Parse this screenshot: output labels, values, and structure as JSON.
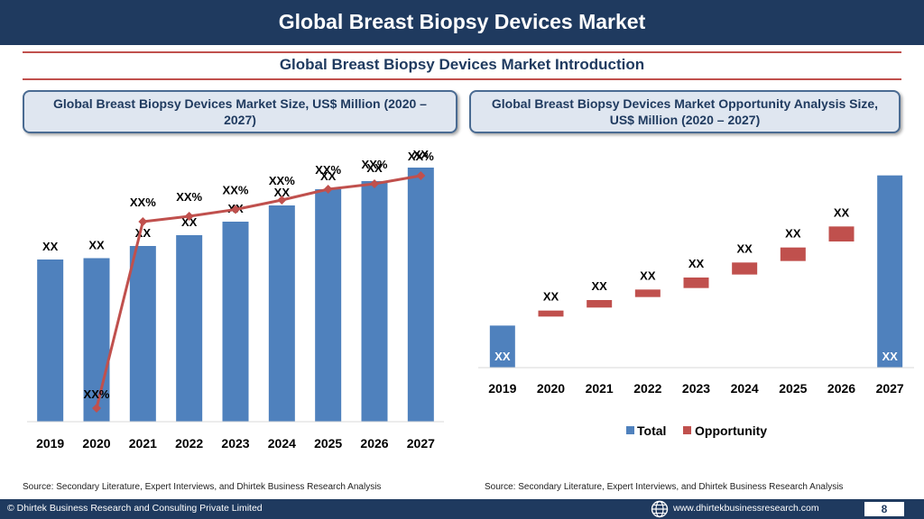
{
  "header": {
    "title": "Global Breast Biopsy Devices Market"
  },
  "intro": {
    "title": "Global Breast Biopsy Devices Market  Introduction"
  },
  "left_panel": {
    "title": "Global Breast Biopsy Devices Market  Size, US$ Million (2020 – 2027)",
    "source": "Source: Secondary Literature, Expert Interviews, and Dhirtek Business Research Analysis"
  },
  "right_panel": {
    "title": "Global Breast Biopsy Devices Market  Opportunity Analysis Size, US$ Million (2020 – 2027)",
    "source": "Source: Secondary Literature, Expert Interviews, and Dhirtek Business Research Analysis"
  },
  "footer": {
    "copyright": "© Dhirtek Business Research and Consulting Private Limited",
    "website": "www.dhirtekbusinessresearch.com",
    "page": "8"
  },
  "icons": {
    "footer_globe": "globe-icon"
  },
  "colors": {
    "bar": "#4f81bd",
    "line": "#c0504d",
    "opportunity": "#c0504d",
    "navy": "#1f3a5f",
    "accent": "#c0504d"
  },
  "chart_data": [
    {
      "type": "bar",
      "categories": [
        "2019",
        "2020",
        "2021",
        "2022",
        "2023",
        "2024",
        "2025",
        "2026",
        "2027"
      ],
      "series": [
        {
          "values": [
            60,
            60.5,
            65,
            69,
            74,
            80,
            86,
            89,
            94
          ],
          "labels": [
            "XX",
            "XX",
            "XX",
            "XX",
            "XX",
            "XX",
            "XX",
            "XX",
            "XX"
          ]
        },
        {
          "type": "line",
          "values": [
            null,
            5,
            74,
            76,
            78.5,
            82,
            86,
            88,
            91
          ],
          "labels": [
            "",
            "XX%",
            "XX%",
            "XX%",
            "XX%",
            "XX%",
            "XX%",
            "XX%",
            "XX%"
          ]
        }
      ],
      "ylim": [
        0,
        100
      ],
      "grid": false,
      "legend": "none"
    },
    {
      "type": "bar",
      "categories": [
        "2019",
        "2020",
        "2021",
        "2022",
        "2023",
        "2024",
        "2025",
        "2026",
        "2027"
      ],
      "series": [
        {
          "name": "Total",
          "values": [
            28,
            null,
            null,
            null,
            null,
            null,
            null,
            null,
            128
          ],
          "labels": [
            "XX",
            "",
            "",
            "",
            "",
            "",
            "",
            "",
            "XX"
          ]
        },
        {
          "name": "Opportunity",
          "ranges": [
            null,
            [
              34,
              38
            ],
            [
              40,
              45
            ],
            [
              47,
              52
            ],
            [
              53,
              60
            ],
            [
              62,
              70
            ],
            [
              71,
              80
            ],
            [
              84,
              94
            ],
            null
          ],
          "labels": [
            "",
            "XX",
            "XX",
            "XX",
            "XX",
            "XX",
            "XX",
            "XX",
            ""
          ]
        }
      ],
      "ylim": [
        0,
        150
      ],
      "grid": false,
      "legend": "bottom"
    }
  ]
}
